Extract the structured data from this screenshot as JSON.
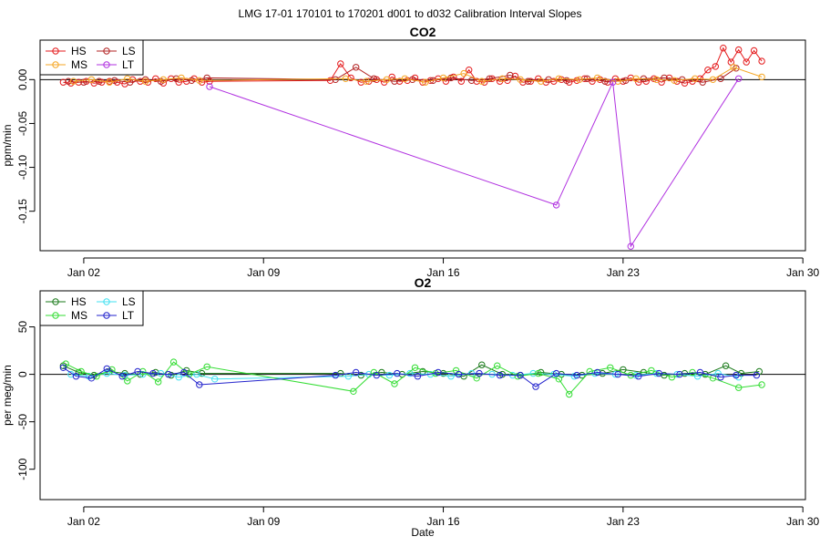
{
  "figure": {
    "suptitle": "LMG   17-01     170101 to 170201     d001 to d032   Calibration Interval Slopes"
  },
  "chart_data": [
    {
      "type": "scatter",
      "title": "CO2",
      "xlabel": "",
      "ylabel": "ppm/min",
      "xlim": [
        0.3,
        30.1
      ],
      "ylim": [
        -0.195,
        0.045
      ],
      "x_tick_values": [
        2,
        9,
        16,
        23,
        30
      ],
      "x_tick_labels": [
        "Jan 02",
        "Jan 09",
        "Jan 16",
        "Jan 23",
        "Jan 30"
      ],
      "y_tick_values": [
        0.0,
        -0.05,
        -0.1,
        -0.15
      ],
      "y_tick_labels": [
        "0.00",
        "-0.05",
        "-0.10",
        "-0.15"
      ],
      "reference_line": 0,
      "legend": {
        "position": "top-left",
        "entries": [
          {
            "label": "HS",
            "color": "#e41a1c"
          },
          {
            "label": "LS",
            "color": "#b22222"
          },
          {
            "label": "MS",
            "color": "#f5a623"
          },
          {
            "label": "LT",
            "color": "#b030e0"
          }
        ]
      },
      "series": [
        {
          "name": "HS",
          "color": "#e41a1c",
          "x": [
            1.2,
            1.5,
            1.8,
            2.1,
            2.4,
            2.7,
            3.0,
            3.3,
            3.6,
            3.9,
            4.2,
            4.5,
            4.8,
            5.1,
            5.4,
            5.7,
            6.0,
            6.3,
            6.6,
            6.9,
            11.6,
            12.0,
            12.4,
            12.8,
            13.1,
            13.4,
            13.7,
            14.0,
            14.3,
            14.6,
            14.9,
            15.2,
            15.5,
            15.8,
            16.1,
            16.4,
            16.7,
            17.0,
            17.3,
            17.6,
            17.9,
            18.2,
            18.5,
            18.8,
            19.1,
            19.4,
            19.7,
            20.0,
            20.3,
            20.6,
            20.9,
            21.2,
            21.5,
            21.8,
            22.1,
            22.4,
            22.7,
            23.0,
            23.3,
            23.6,
            23.9,
            24.2,
            24.5,
            24.8,
            25.1,
            25.4,
            25.7,
            26.0,
            26.3,
            26.6,
            26.9,
            27.2,
            27.5,
            27.8,
            28.1,
            28.4
          ],
          "y": [
            -0.003,
            -0.004,
            -0.003,
            -0.002,
            -0.004,
            -0.003,
            -0.002,
            -0.003,
            -0.005,
            0.0,
            -0.002,
            -0.003,
            0.001,
            -0.004,
            0.001,
            -0.003,
            -0.002,
            0.001,
            -0.003,
            -0.002,
            -0.001,
            0.018,
            0.002,
            -0.003,
            -0.002,
            0.0,
            -0.003,
            0.003,
            -0.002,
            -0.001,
            0.002,
            -0.003,
            -0.001,
            0.001,
            -0.002,
            0.003,
            -0.002,
            0.011,
            -0.002,
            -0.003,
            0.001,
            -0.002,
            -0.001,
            0.004,
            -0.003,
            -0.002,
            0.001,
            -0.003,
            -0.002,
            0.0,
            -0.003,
            -0.001,
            0.001,
            -0.002,
            0.0,
            -0.003,
            0.001,
            -0.002,
            0.002,
            -0.003,
            -0.002,
            0.001,
            -0.003,
            0.002,
            -0.002,
            -0.004,
            -0.002,
            0.001,
            0.011,
            0.015,
            0.036,
            0.02,
            0.034,
            0.02,
            0.033,
            0.021
          ]
        },
        {
          "name": "LS",
          "color": "#b22222",
          "x": [
            1.4,
            2.0,
            2.6,
            3.2,
            3.8,
            4.4,
            5.0,
            5.6,
            6.2,
            6.8,
            11.8,
            12.6,
            13.3,
            14.1,
            14.8,
            15.6,
            16.3,
            17.1,
            17.8,
            18.6,
            19.3,
            20.1,
            20.8,
            21.6,
            22.3,
            23.1,
            23.8,
            24.6,
            25.3,
            26.1,
            26.8,
            27.4
          ],
          "y": [
            -0.002,
            -0.003,
            -0.002,
            -0.001,
            -0.003,
            0.0,
            -0.002,
            0.001,
            -0.001,
            0.002,
            0.0,
            0.014,
            0.001,
            -0.002,
            0.0,
            -0.001,
            0.002,
            -0.001,
            0.001,
            0.005,
            -0.002,
            0.0,
            -0.001,
            0.001,
            -0.002,
            -0.001,
            0.001,
            0.002,
            0.0,
            -0.003,
            0.001,
            0.013
          ]
        },
        {
          "name": "MS",
          "color": "#f5a623",
          "x": [
            1.6,
            2.3,
            3.0,
            3.7,
            4.4,
            5.1,
            5.8,
            6.5,
            12.2,
            13.0,
            13.8,
            14.5,
            15.3,
            16.0,
            16.8,
            17.5,
            18.3,
            19.0,
            19.8,
            20.5,
            21.3,
            22.0,
            22.8,
            23.5,
            24.3,
            25.0,
            25.8,
            26.5,
            27.3,
            28.4
          ],
          "y": [
            -0.002,
            0.0,
            -0.003,
            0.001,
            -0.002,
            0.0,
            0.002,
            -0.001,
            0.001,
            -0.002,
            0.0,
            0.001,
            -0.003,
            0.002,
            0.007,
            -0.002,
            0.001,
            0.0,
            -0.002,
            0.001,
            0.0,
            0.002,
            -0.002,
            0.001,
            0.0,
            -0.001,
            0.001,
            0.0,
            0.014,
            0.003
          ]
        },
        {
          "name": "LT",
          "color": "#b030e0",
          "x": [
            6.9,
            20.4,
            22.6,
            23.3,
            27.5
          ],
          "y": [
            -0.008,
            -0.143,
            -0.003,
            -0.19,
            0.001
          ]
        }
      ]
    },
    {
      "type": "scatter",
      "title": "O2",
      "xlabel": "Date",
      "ylabel": "per meg/min",
      "xlim": [
        0.3,
        30.1
      ],
      "ylim": [
        -132,
        88
      ],
      "x_tick_values": [
        2,
        9,
        16,
        23,
        30
      ],
      "x_tick_labels": [
        "Jan 02",
        "Jan 09",
        "Jan 16",
        "Jan 23",
        "Jan 30"
      ],
      "y_tick_values": [
        50,
        0,
        -50,
        -100
      ],
      "y_tick_labels": [
        "50",
        "0",
        "-50",
        "-100"
      ],
      "reference_line": 0,
      "legend": {
        "position": "top-left",
        "entries": [
          {
            "label": "HS",
            "color": "#1a7a1a"
          },
          {
            "label": "LS",
            "color": "#40e0f0"
          },
          {
            "label": "MS",
            "color": "#33dd33"
          },
          {
            "label": "LT",
            "color": "#2222cc"
          }
        ]
      },
      "series": [
        {
          "name": "HS",
          "color": "#1a7a1a",
          "x": [
            1.2,
            1.8,
            2.4,
            3.0,
            3.6,
            4.2,
            4.8,
            5.4,
            6.0,
            6.6,
            12.0,
            12.8,
            13.6,
            14.4,
            15.2,
            16.0,
            16.8,
            17.5,
            18.3,
            19.0,
            19.8,
            20.6,
            21.4,
            22.2,
            23.0,
            23.8,
            24.6,
            25.4,
            26.2,
            27.0,
            27.6,
            28.3
          ],
          "y": [
            9,
            2,
            -1,
            3,
            1,
            0,
            2,
            -1,
            4,
            1,
            1,
            -1,
            2,
            0,
            3,
            1,
            -2,
            10,
            0,
            -1,
            2,
            0,
            -1,
            1,
            5,
            2,
            -1,
            1,
            0,
            9,
            1,
            3
          ]
        },
        {
          "name": "LS",
          "color": "#40e0f0",
          "x": [
            1.5,
            2.2,
            2.9,
            3.6,
            4.3,
            5.0,
            5.7,
            6.4,
            7.1,
            12.3,
            13.1,
            13.9,
            14.7,
            15.5,
            16.3,
            17.1,
            17.9,
            18.7,
            19.5,
            20.3,
            21.1,
            21.9,
            22.7,
            23.5,
            24.3,
            25.1,
            25.9,
            26.7,
            27.5
          ],
          "y": [
            0,
            -2,
            1,
            -1,
            0,
            1,
            -3,
            0,
            -5,
            -2,
            0,
            -1,
            1,
            0,
            -2,
            1,
            0,
            -1,
            1,
            0,
            -2,
            1,
            0,
            -1,
            1,
            0,
            -2,
            1,
            -3
          ]
        },
        {
          "name": "MS",
          "color": "#33dd33",
          "x": [
            1.3,
            1.9,
            2.5,
            3.1,
            3.7,
            4.3,
            4.9,
            5.5,
            6.1,
            6.8,
            12.5,
            13.3,
            14.1,
            14.9,
            15.7,
            16.5,
            17.3,
            18.1,
            18.9,
            19.7,
            20.5,
            20.9,
            21.7,
            22.5,
            23.3,
            24.1,
            24.9,
            25.7,
            26.5,
            27.5,
            28.4
          ],
          "y": [
            11,
            3,
            -2,
            5,
            -7,
            3,
            -8,
            13,
            0,
            8,
            -18,
            2,
            -10,
            7,
            1,
            4,
            -4,
            9,
            -2,
            1,
            -5,
            -21,
            3,
            7,
            -1,
            4,
            -3,
            2,
            -4,
            -14,
            -11
          ]
        },
        {
          "name": "LT",
          "color": "#2222cc",
          "x": [
            1.2,
            1.7,
            2.3,
            2.9,
            3.5,
            4.1,
            4.7,
            5.3,
            5.9,
            6.5,
            11.8,
            12.6,
            13.4,
            14.2,
            15.0,
            15.8,
            16.6,
            17.4,
            18.2,
            19.0,
            19.6,
            20.4,
            21.2,
            22.0,
            22.8,
            23.6,
            24.4,
            25.2,
            26.0,
            26.8,
            27.4,
            28.2
          ],
          "y": [
            7,
            -2,
            -4,
            6,
            -2,
            3,
            1,
            0,
            2,
            -11,
            -1,
            2,
            -1,
            1,
            -2,
            2,
            0,
            1,
            -1,
            -1,
            -13,
            1,
            -1,
            2,
            0,
            -2,
            1,
            0,
            2,
            -3,
            -1,
            -1
          ]
        }
      ]
    }
  ]
}
